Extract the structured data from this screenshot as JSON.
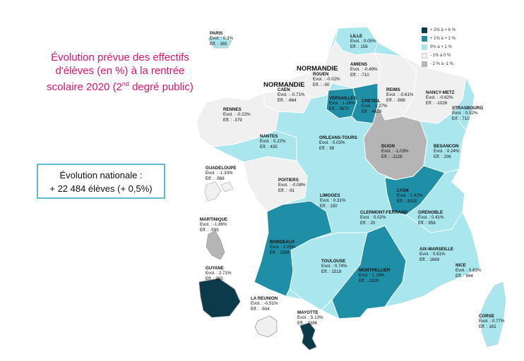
{
  "title": {
    "line1": "Évolution prévue des effectifs",
    "line2": "d'élèves (en %) à la rentrée",
    "line3_pre": "scolaire 2020 (2",
    "line3_sup": "nd",
    "line3_post": " degré public)"
  },
  "national": {
    "line1": "Évolution nationale :",
    "line2": "+ 22 484 élèves (+ 0,5%)"
  },
  "legend": [
    {
      "label": "+ 2% à + 6 %",
      "color": "#0b3a4a"
    },
    {
      "label": "+ 1% à + 2 %",
      "color": "#1f8fa8"
    },
    {
      "label": "0% à + 1 %",
      "color": "#a9e6ee"
    },
    {
      "label": "- 1% à 0 %",
      "color": "#f0f0f0"
    },
    {
      "label": "- 2 % à -1 %",
      "color": "#b5b5b5"
    }
  ],
  "colors": {
    "c1": "#0b3a4a",
    "c2": "#1f8fa8",
    "c3": "#a9e6ee",
    "c4": "#f0f0f0",
    "c5": "#b5b5b5"
  },
  "normandie_labels": [
    "NORMANDIE",
    "NORMANDIE"
  ],
  "regions": [
    {
      "name": "PARIS",
      "evol": "Evol. : 0.3%",
      "eff": "Eff. : 385"
    },
    {
      "name": "LILLE",
      "evol": "Evol. : 0.05%",
      "eff": "Eff. : 156"
    },
    {
      "name": "AMIENS",
      "evol": "Evol. : -0.49%",
      "eff": "Eff. : -710"
    },
    {
      "name": "ROUEN",
      "evol": "Evol. : -0.02%",
      "eff": "Eff. : -30"
    },
    {
      "name": "CAEN",
      "evol": "Evol. : -0.71%",
      "eff": "Eff. : -664"
    },
    {
      "name": "REIMS",
      "evol": "Evol. : -0.61%",
      "eff": "Eff. : -568"
    },
    {
      "name": "NANCY-METZ",
      "evol": "Evol. : -0.62%",
      "eff": "Eff. : -1026"
    },
    {
      "name": "STRASBOURG",
      "evol": "Evol. : 0.52%",
      "eff": "Eff. : 710"
    },
    {
      "name": "VERSAILLES",
      "evol": "Evol. : 1.28%",
      "eff": "Eff. : 5670"
    },
    {
      "name": "CRETEIL",
      "evol": "Evol. : 1.27%",
      "eff": "Eff. : 4629"
    },
    {
      "name": "RENNES",
      "evol": "Evol. : -0.22%",
      "eff": "Eff. : -379"
    },
    {
      "name": "NANTES",
      "evol": "Evol. : 0.22%",
      "eff": "Eff. : 435"
    },
    {
      "name": "ORLEANS-TOURS",
      "evol": "Evol. : 0.03%",
      "eff": "Eff. : 58"
    },
    {
      "name": "DIJON",
      "evol": "Evol. : -1.03%",
      "eff": "Eff. : -1128"
    },
    {
      "name": "BESANCON",
      "evol": "Evol. : 0.24%",
      "eff": "Eff. : 206"
    },
    {
      "name": "POITIERS",
      "evol": "Evol. : -0.08%",
      "eff": "Eff. : -91"
    },
    {
      "name": "LIMOGES",
      "evol": "Evol. : 0.31%",
      "eff": "Eff. : 150"
    },
    {
      "name": "LYON",
      "evol": "Evol. : 1.42%",
      "eff": "Eff. : 3018"
    },
    {
      "name": "CLERMONT-FERRAND",
      "evol": "Evol. : 0.02%",
      "eff": "Eff. : 20"
    },
    {
      "name": "GRENOBLE",
      "evol": "Evol. : 0.41%",
      "eff": "Eff. : 956"
    },
    {
      "name": "BORDEAUX",
      "evol": "Evol. : 1.05%",
      "eff": "Eff. : 2394"
    },
    {
      "name": "TOULOUSE",
      "evol": "Evol. : 0.74%",
      "eff": "Eff. : 1519"
    },
    {
      "name": "MONTPELLIER",
      "evol": "Evol. : 1.18%",
      "eff": "Eff. : 2329"
    },
    {
      "name": "AIX-MARSEILLE",
      "evol": "Evol. : 0.81%",
      "eff": "Eff. : 1669"
    },
    {
      "name": "NICE",
      "evol": "Evol. : 0.63%",
      "eff": "Eff. : 944"
    },
    {
      "name": "CORSE",
      "evol": "Evol. : 0.77%",
      "eff": "Eff. : 161"
    },
    {
      "name": "GUADELOUPE",
      "evol": "Evol. : -1.33%",
      "eff": "Eff. : -568"
    },
    {
      "name": "MARTINIQUE",
      "evol": "Evol. : -1.86%",
      "eff": "Eff. : -595"
    },
    {
      "name": "GUYANE",
      "evol": "Evol. : 2.71%",
      "eff": "Eff. : 955"
    },
    {
      "name": "LA REUNION",
      "evol": "Evol. : -0.51%",
      "eff": "Eff. : -504"
    },
    {
      "name": "MAYOTTE",
      "evol": "Evol. : 5.13%",
      "eff": "Eff. : 2386"
    }
  ]
}
